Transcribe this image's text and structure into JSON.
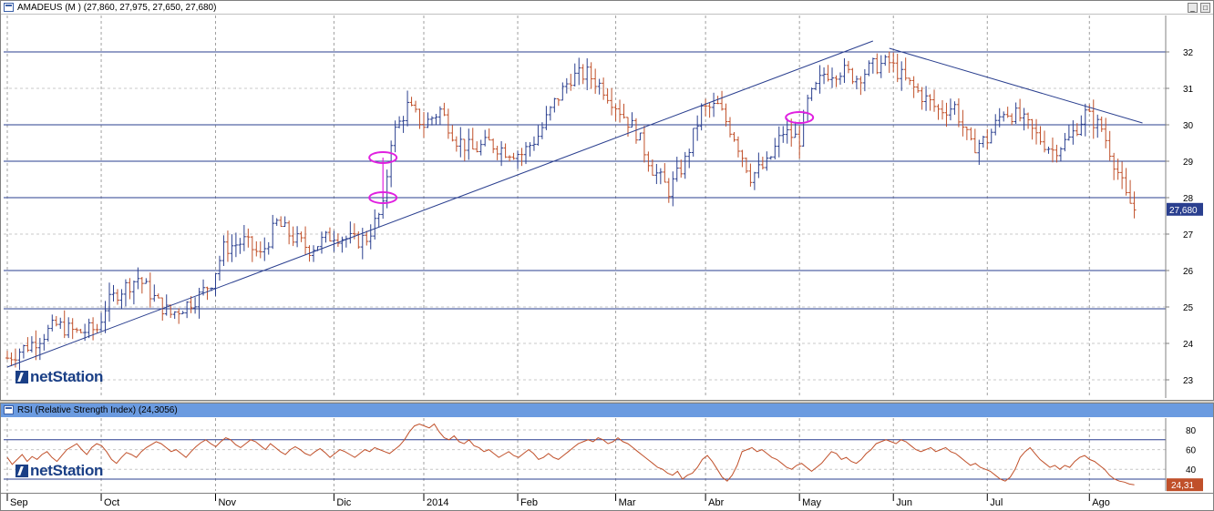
{
  "price_panel": {
    "title": "AMADEUS (M ) (27,860, 27,975, 27,650, 27,680)",
    "last_label": "27,680",
    "watermark": "netStation"
  },
  "rsi_panel": {
    "title": "RSI (Relative Strength Index) (24,3056)",
    "last_label": "24,31",
    "watermark": "netStation"
  },
  "chart_data": [
    {
      "type": "ohlc",
      "title": "AMADEUS (M ) (27,860, 27,975, 27,650, 27,680)",
      "ylim": [
        22.5,
        33.0
      ],
      "y_ticks": [
        23,
        24,
        25,
        26,
        27,
        28,
        29,
        30,
        31,
        32
      ],
      "horizontal_lines": [
        24.95,
        26,
        28,
        29,
        30,
        32
      ],
      "months": [
        "Sep",
        "Oct",
        "Nov",
        "Dic",
        "2014",
        "Feb",
        "Mar",
        "Abr",
        "May",
        "Jun",
        "Jul",
        "Ago"
      ],
      "last_value": 27.68,
      "colors": {
        "up": "#2a3f8f",
        "down": "#c0502a",
        "lines": "#2a3f8f",
        "marker": "#e020e0",
        "last_label_bg": "#2a3f8f"
      },
      "close_path": [
        [
          0,
          23.6
        ],
        [
          6,
          24.0
        ],
        [
          12,
          24.5
        ],
        [
          17,
          24.3
        ],
        [
          22,
          24.4
        ],
        [
          24,
          25.0
        ],
        [
          27,
          25.4
        ],
        [
          32,
          25.8
        ],
        [
          37,
          25.1
        ],
        [
          40,
          24.8
        ],
        [
          43,
          25.0
        ],
        [
          47,
          25.3
        ],
        [
          50,
          25.7
        ],
        [
          53,
          26.6
        ],
        [
          58,
          26.8
        ],
        [
          62,
          26.4
        ],
        [
          66,
          27.3
        ],
        [
          70,
          26.9
        ],
        [
          74,
          26.6
        ],
        [
          80,
          27.0
        ],
        [
          85,
          26.8
        ],
        [
          88,
          26.9
        ],
        [
          92,
          27.7
        ],
        [
          94,
          29.6
        ],
        [
          98,
          30.5
        ],
        [
          102,
          30.0
        ],
        [
          106,
          30.4
        ],
        [
          110,
          29.6
        ],
        [
          114,
          29.3
        ],
        [
          118,
          29.5
        ],
        [
          122,
          29.3
        ],
        [
          126,
          29.2
        ],
        [
          130,
          29.7
        ],
        [
          134,
          30.6
        ],
        [
          138,
          31.3
        ],
        [
          142,
          31.4
        ],
        [
          146,
          31.0
        ],
        [
          150,
          30.4
        ],
        [
          154,
          29.8
        ],
        [
          158,
          28.8
        ],
        [
          162,
          28.2
        ],
        [
          166,
          29.0
        ],
        [
          170,
          30.4
        ],
        [
          174,
          30.5
        ],
        [
          178,
          29.7
        ],
        [
          182,
          28.6
        ],
        [
          186,
          28.9
        ],
        [
          190,
          29.8
        ],
        [
          194,
          29.6
        ],
        [
          196,
          30.6
        ],
        [
          200,
          31.4
        ],
        [
          204,
          31.5
        ],
        [
          208,
          31.3
        ],
        [
          212,
          31.6
        ],
        [
          216,
          31.7
        ],
        [
          220,
          31.2
        ],
        [
          224,
          30.8
        ],
        [
          228,
          30.4
        ],
        [
          232,
          30.5
        ],
        [
          236,
          29.4
        ],
        [
          240,
          29.6
        ],
        [
          244,
          30.4
        ],
        [
          248,
          30.2
        ],
        [
          252,
          29.7
        ],
        [
          256,
          29.3
        ],
        [
          260,
          29.6
        ],
        [
          264,
          30.3
        ],
        [
          268,
          29.9
        ],
        [
          270,
          29.3
        ],
        [
          272,
          28.7
        ],
        [
          274,
          28.0
        ],
        [
          276,
          27.68
        ]
      ],
      "annotations": {
        "uptrend_line": [
          [
            0,
            23.35
          ],
          [
            212,
            32.3
          ]
        ],
        "downtrend_line": [
          [
            216,
            32.1
          ],
          [
            278,
            30.05
          ]
        ],
        "gap_markers": [
          [
            92,
            28.0
          ],
          [
            92,
            29.1
          ],
          [
            194,
            30.2
          ]
        ]
      }
    },
    {
      "type": "line",
      "title": "RSI (Relative Strength Index) (24,3056)",
      "ylim": [
        18,
        92
      ],
      "y_ticks": [
        40,
        60,
        80
      ],
      "horizontal_lines": [
        30,
        70
      ],
      "last_value": 24.31,
      "series_color": "#c0502a",
      "values": [
        52,
        45,
        50,
        55,
        48,
        53,
        50,
        55,
        58,
        52,
        48,
        54,
        60,
        63,
        66,
        60,
        55,
        62,
        66,
        64,
        58,
        50,
        46,
        52,
        57,
        55,
        52,
        58,
        62,
        65,
        68,
        66,
        62,
        58,
        60,
        56,
        52,
        58,
        63,
        67,
        70,
        66,
        63,
        68,
        72,
        70,
        65,
        62,
        66,
        70,
        68,
        64,
        60,
        66,
        62,
        58,
        55,
        60,
        63,
        60,
        56,
        54,
        58,
        61,
        57,
        52,
        56,
        60,
        58,
        55,
        52,
        56,
        60,
        58,
        62,
        60,
        58,
        56,
        60,
        64,
        70,
        78,
        84,
        86,
        84,
        82,
        86,
        78,
        72,
        70,
        74,
        68,
        66,
        70,
        64,
        62,
        58,
        60,
        56,
        52,
        55,
        58,
        54,
        52,
        56,
        60,
        56,
        50,
        52,
        56,
        52,
        50,
        54,
        58,
        62,
        66,
        68,
        70,
        68,
        72,
        70,
        66,
        68,
        72,
        68,
        66,
        62,
        58,
        54,
        50,
        46,
        42,
        40,
        36,
        34,
        38,
        30,
        34,
        36,
        42,
        50,
        54,
        48,
        40,
        32,
        28,
        34,
        44,
        58,
        60,
        62,
        58,
        60,
        56,
        52,
        50,
        46,
        42,
        40,
        44,
        46,
        42,
        38,
        42,
        46,
        52,
        58,
        56,
        50,
        52,
        48,
        46,
        50,
        56,
        60,
        66,
        68,
        70,
        68,
        66,
        70,
        68,
        64,
        60,
        58,
        60,
        62,
        58,
        60,
        62,
        58,
        56,
        52,
        48,
        44,
        46,
        42,
        40,
        38,
        34,
        30,
        28,
        32,
        40,
        52,
        58,
        62,
        56,
        50,
        46,
        42,
        44,
        40,
        44,
        42,
        48,
        52,
        54,
        50,
        48,
        44,
        40,
        34,
        30,
        28,
        27,
        25,
        24.31
      ]
    }
  ]
}
